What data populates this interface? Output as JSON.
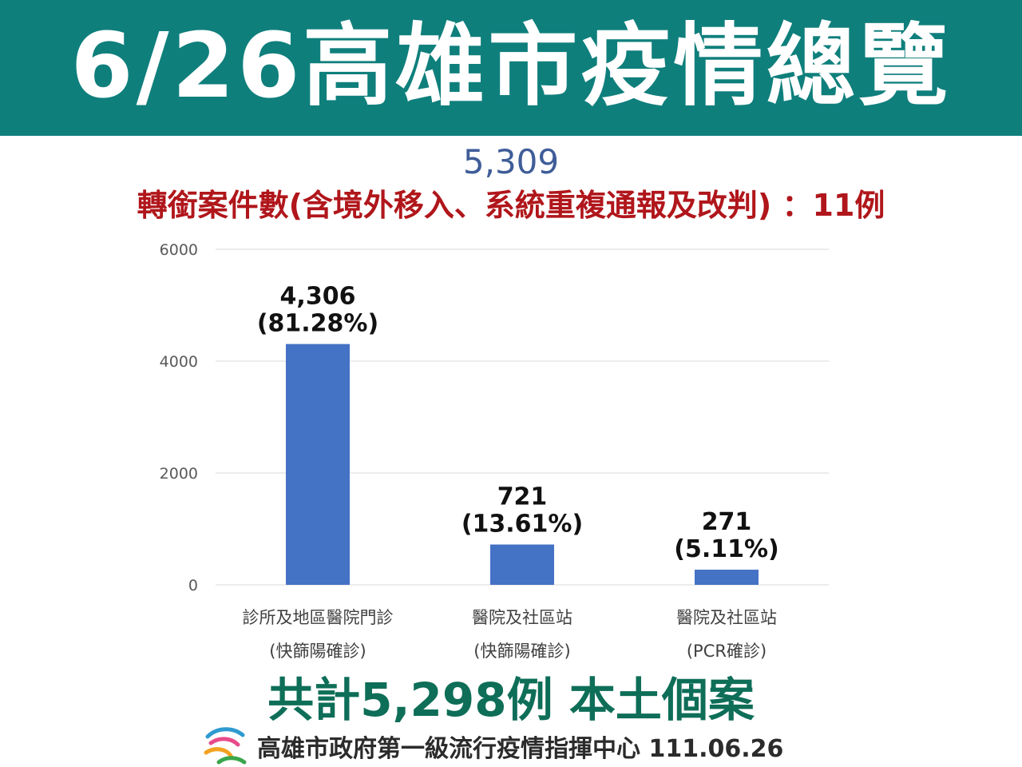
{
  "header": {
    "title": "6/26高雄市疫情總覽"
  },
  "total_cases": "5,309",
  "subtitle": "轉銜案件數(含境外移入、系統重複通報及改判)  ：11例",
  "summary": "共計5,298例 本土個案",
  "footer": {
    "text": "高雄市政府第一級流行疫情指揮中心 111.06.26"
  },
  "colors": {
    "header": "#0f7f7c",
    "bar": "#4472c4",
    "subtitle": "#b0161b",
    "summary": "#0e6e58",
    "total": "#3f5d98"
  },
  "chart_data": {
    "type": "bar",
    "categories": [
      [
        "診所及地區醫院門診",
        "(快篩陽確診)"
      ],
      [
        "醫院及社區站",
        "(快篩陽確診)"
      ],
      [
        "醫院及社區站",
        "(PCR確診)"
      ]
    ],
    "values": [
      4306,
      721,
      271
    ],
    "value_labels": [
      "4,306",
      "721",
      "271"
    ],
    "percent_labels": [
      "(81.28%)",
      "(13.61%)",
      "(5.11%)"
    ],
    "yticks": [
      0,
      2000,
      4000,
      6000
    ],
    "ylim": [
      0,
      6000
    ],
    "grid": true,
    "title": "",
    "xlabel": "",
    "ylabel": ""
  }
}
